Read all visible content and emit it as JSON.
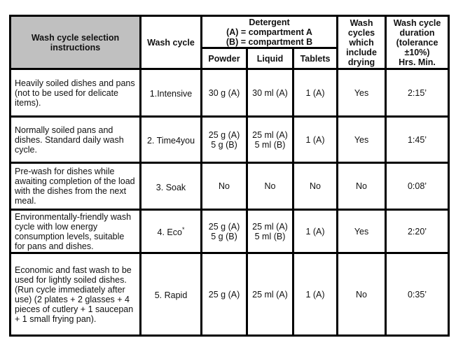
{
  "header": {
    "instructions": "Wash cycle selection instructions",
    "wash_cycle": "Wash cycle",
    "detergent": [
      "Detergent",
      "(A) = compartment A",
      "(B) = compartment B"
    ],
    "powder": "Powder",
    "liquid": "Liquid",
    "tablets": "Tablets",
    "drying": "Wash cycles which include drying",
    "duration": [
      "Wash cycle duration",
      "(tolerance ±10%)",
      "Hrs. Min."
    ]
  },
  "rows": [
    {
      "desc": "Heavily soiled dishes and pans (not to be used for delicate items).",
      "cycle": "1.Intensive",
      "cycle_mark": "",
      "powder": [
        "30 g (A)"
      ],
      "liquid": [
        "30 ml (A)"
      ],
      "tablets": "1 (A)",
      "drying": "Yes",
      "duration": "2:15’"
    },
    {
      "desc": "Normally soiled pans and dishes. Standard daily wash cycle.",
      "cycle": "2. Time4you",
      "cycle_mark": "",
      "powder": [
        "25 g (A)",
        "5 g (B)"
      ],
      "liquid": [
        "25 ml (A)",
        "5 ml (B)"
      ],
      "tablets": "1 (A)",
      "drying": "Yes",
      "duration": "1:45’"
    },
    {
      "desc": "Pre-wash for dishes while awaiting completion of the load with the dishes from the next meal.",
      "cycle": "3. Soak",
      "cycle_mark": "",
      "powder": [
        "No"
      ],
      "liquid": [
        "No"
      ],
      "tablets": "No",
      "drying": "No",
      "duration": "0:08’"
    },
    {
      "desc": "Environmentally-friendly wash cycle with low energy consumption levels, suitable for pans and dishes.",
      "cycle": "4. Eco",
      "cycle_mark": "*",
      "powder": [
        "25 g (A)",
        "5 g (B)"
      ],
      "liquid": [
        "25 ml (A)",
        "5 ml (B)"
      ],
      "tablets": "1 (A)",
      "drying": "Yes",
      "duration": "2:20’"
    },
    {
      "desc": "Economic and fast wash to be used for lightly soiled dishes. (Run cycle immediately after use) (2 plates + 2 glasses + 4 pieces of cutlery + 1 saucepan + 1 small frying pan).",
      "cycle": "5. Rapid",
      "cycle_mark": "",
      "powder": [
        "25 g (A)"
      ],
      "liquid": [
        "25 ml (A)"
      ],
      "tablets": "1 (A)",
      "drying": "No",
      "duration": "0:35’"
    }
  ]
}
